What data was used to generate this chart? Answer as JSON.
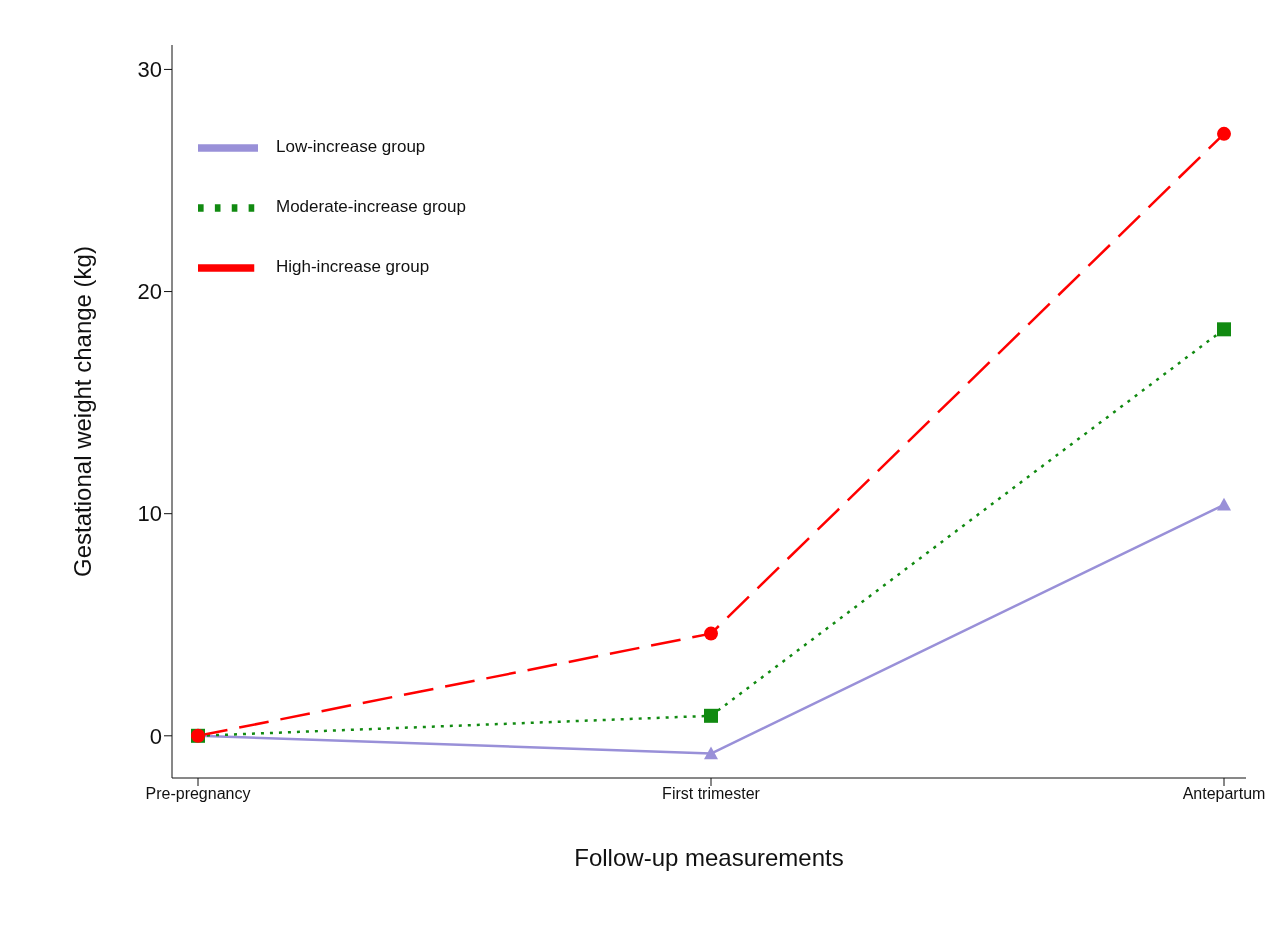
{
  "chart_data": {
    "type": "line",
    "xlabel": "Follow-up measurements",
    "ylabel": "Gestational weight change (kg)",
    "categories": [
      "Pre-pregnancy",
      "First trimester",
      "Antepartum"
    ],
    "series": [
      {
        "name": "Low-increase group",
        "color": "#9990d8",
        "values": [
          0,
          -0.8,
          10.4
        ],
        "marker": "triangle",
        "line_style": "solid"
      },
      {
        "name": "Moderate-increase group",
        "color": "#118a11",
        "values": [
          0,
          0.9,
          18.3
        ],
        "marker": "square",
        "line_style": "dotted"
      },
      {
        "name": "High-increase group",
        "color": "#ff0000",
        "values": [
          0,
          4.6,
          27.1
        ],
        "marker": "circle",
        "line_style": "dashed"
      }
    ],
    "ylim": [
      -1.9,
      31.1
    ],
    "yticks": [
      0,
      10,
      20,
      30
    ],
    "grid": false,
    "legend": "top left"
  }
}
